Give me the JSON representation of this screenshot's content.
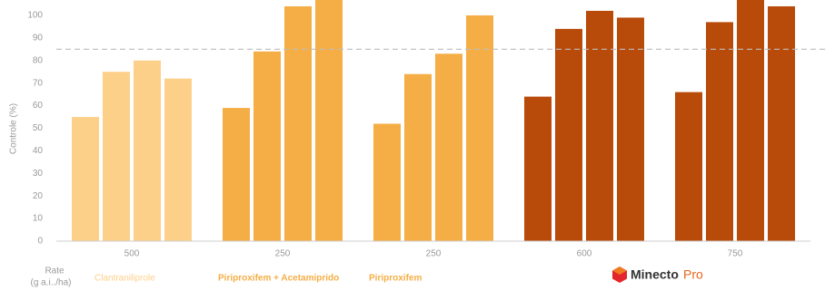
{
  "chart_data": {
    "type": "bar",
    "y_label": "Controle (%)",
    "x_label": [
      "Rate",
      "(g a.i../ha)"
    ],
    "categories": [
      "500",
      "250",
      "250",
      "600",
      "750"
    ],
    "group_colors": [
      "#fdd08a",
      "#f5ae45",
      "#f5ae45",
      "#b84a0a",
      "#b84a0a"
    ],
    "series": [
      {
        "values": [
          55,
          59,
          52,
          64,
          66
        ]
      },
      {
        "values": [
          75,
          84,
          74,
          94,
          97
        ]
      },
      {
        "values": [
          80,
          104,
          83,
          102,
          107
        ]
      },
      {
        "values": [
          72,
          107,
          100,
          99,
          104
        ]
      }
    ],
    "reference_line": 85,
    "ylim": [
      0,
      106.8
    ],
    "yticks": [
      0,
      10,
      20,
      30,
      40,
      50,
      60,
      70,
      80,
      90,
      100
    ],
    "products": [
      {
        "label": "Clantraniliprole",
        "color": "#fdd08a"
      },
      {
        "label": "Piriproxifem + Acetamiprido",
        "color": "#f5ae45"
      },
      {
        "label": "Piriproxifem",
        "color": "#f5ae45"
      }
    ],
    "brand": {
      "name": "Minecto",
      "suffix": "Pro"
    }
  }
}
